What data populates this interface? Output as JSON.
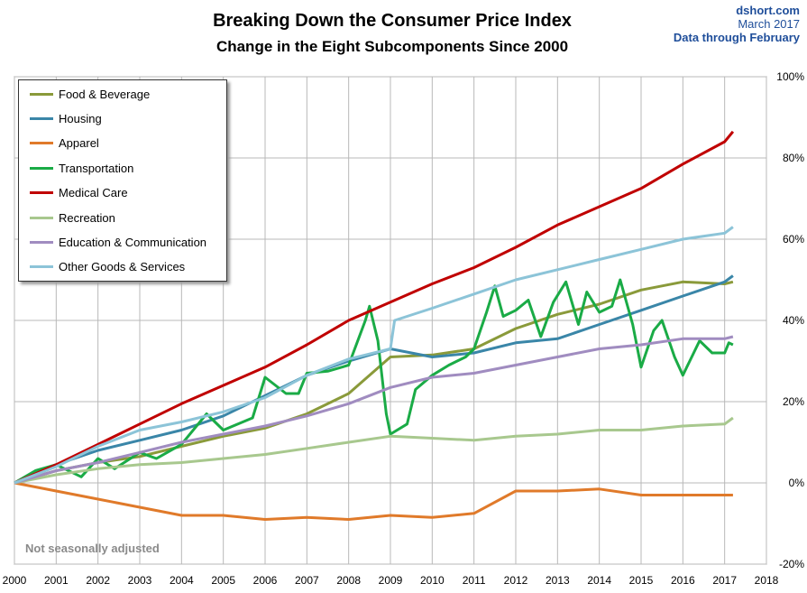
{
  "header": {
    "title": "Breaking Down the Consumer Price Index",
    "subtitle": "Change in the Eight Subcomponents  Since 2000",
    "source": "dshort.com",
    "date": "March 2017",
    "data_through": "Data through February"
  },
  "note": "Not seasonally adjusted",
  "chart_data": {
    "type": "line",
    "title": "Breaking Down the Consumer Price Index",
    "subtitle": "Change in the Eight Subcomponents  Since 2000",
    "x_ticks": [
      "2000",
      "2001",
      "2002",
      "2003",
      "2004",
      "2005",
      "2006",
      "2007",
      "2008",
      "2009",
      "2010",
      "2011",
      "2012",
      "2013",
      "2014",
      "2015",
      "2016",
      "2017",
      "2018"
    ],
    "y_ticks": [
      "100%",
      "80%",
      "60%",
      "40%",
      "20%",
      "0%",
      "-20%"
    ],
    "xlim": [
      2000,
      2018
    ],
    "ylim": [
      -20,
      100
    ],
    "grid": true,
    "legend_position": "top-left",
    "series": [
      {
        "name": "Food & Beverage",
        "color": "#8a9a3a",
        "points": [
          [
            2000,
            0
          ],
          [
            2001,
            3
          ],
          [
            2002,
            5
          ],
          [
            2003,
            6.5
          ],
          [
            2004,
            9
          ],
          [
            2005,
            11.5
          ],
          [
            2006,
            13.5
          ],
          [
            2007,
            17
          ],
          [
            2008,
            22
          ],
          [
            2009,
            31
          ],
          [
            2010,
            31.5
          ],
          [
            2011,
            33
          ],
          [
            2012,
            38
          ],
          [
            2013,
            41.5
          ],
          [
            2014,
            44
          ],
          [
            2015,
            47.5
          ],
          [
            2016,
            49.5
          ],
          [
            2017,
            49
          ],
          [
            2017.2,
            49.5
          ]
        ]
      },
      {
        "name": "Housing",
        "color": "#3a86a8",
        "points": [
          [
            2000,
            0
          ],
          [
            2001,
            4.5
          ],
          [
            2002,
            8
          ],
          [
            2003,
            10.5
          ],
          [
            2004,
            13
          ],
          [
            2005,
            16.5
          ],
          [
            2006,
            21.5
          ],
          [
            2007,
            26.5
          ],
          [
            2008,
            30
          ],
          [
            2009,
            33
          ],
          [
            2010,
            31
          ],
          [
            2011,
            32
          ],
          [
            2012,
            34.5
          ],
          [
            2013,
            35.5
          ],
          [
            2014,
            39
          ],
          [
            2015,
            42.5
          ],
          [
            2016,
            46
          ],
          [
            2017,
            49.5
          ],
          [
            2017.2,
            51
          ]
        ]
      },
      {
        "name": "Apparel",
        "color": "#e07a2a",
        "points": [
          [
            2000,
            0
          ],
          [
            2001,
            -2
          ],
          [
            2002,
            -4
          ],
          [
            2003,
            -6
          ],
          [
            2004,
            -8
          ],
          [
            2005,
            -8
          ],
          [
            2006,
            -9
          ],
          [
            2007,
            -8.5
          ],
          [
            2008,
            -9
          ],
          [
            2009,
            -8
          ],
          [
            2010,
            -8.5
          ],
          [
            2011,
            -7.5
          ],
          [
            2012,
            -2
          ],
          [
            2013,
            -2
          ],
          [
            2014,
            -1.5
          ],
          [
            2015,
            -3
          ],
          [
            2016,
            -3
          ],
          [
            2017,
            -3
          ],
          [
            2017.2,
            -3
          ]
        ]
      },
      {
        "name": "Transportation",
        "color": "#1aab46",
        "points": [
          [
            2000,
            0
          ],
          [
            2000.5,
            3
          ],
          [
            2001,
            4.5
          ],
          [
            2001.6,
            1.5
          ],
          [
            2002,
            6
          ],
          [
            2002.4,
            3.5
          ],
          [
            2003,
            7.5
          ],
          [
            2003.4,
            6
          ],
          [
            2004,
            9.5
          ],
          [
            2004.6,
            17
          ],
          [
            2005,
            13
          ],
          [
            2005.7,
            16
          ],
          [
            2006,
            26
          ],
          [
            2006.5,
            22
          ],
          [
            2006.8,
            22
          ],
          [
            2007,
            27
          ],
          [
            2007.5,
            27.5
          ],
          [
            2008,
            29
          ],
          [
            2008.4,
            40
          ],
          [
            2008.5,
            43.5
          ],
          [
            2008.7,
            35
          ],
          [
            2008.9,
            17
          ],
          [
            2009,
            12
          ],
          [
            2009.4,
            14.5
          ],
          [
            2009.6,
            23
          ],
          [
            2010,
            26.5
          ],
          [
            2010.4,
            29
          ],
          [
            2010.8,
            31
          ],
          [
            2011,
            33
          ],
          [
            2011.3,
            42
          ],
          [
            2011.5,
            48.5
          ],
          [
            2011.7,
            41
          ],
          [
            2012,
            42.5
          ],
          [
            2012.3,
            45
          ],
          [
            2012.6,
            36
          ],
          [
            2012.9,
            44.5
          ],
          [
            2013.2,
            49.5
          ],
          [
            2013.5,
            39
          ],
          [
            2013.7,
            47
          ],
          [
            2014,
            42
          ],
          [
            2014.3,
            43.5
          ],
          [
            2014.5,
            50
          ],
          [
            2014.8,
            39
          ],
          [
            2015,
            28.5
          ],
          [
            2015.3,
            37.5
          ],
          [
            2015.5,
            40
          ],
          [
            2015.8,
            31
          ],
          [
            2016,
            26.5
          ],
          [
            2016.4,
            35
          ],
          [
            2016.7,
            32
          ],
          [
            2017,
            32
          ],
          [
            2017.1,
            34.5
          ],
          [
            2017.2,
            34
          ]
        ]
      },
      {
        "name": "Medical Care",
        "color": "#c00000",
        "points": [
          [
            2000,
            0
          ],
          [
            2001,
            4.5
          ],
          [
            2002,
            9.5
          ],
          [
            2003,
            14.5
          ],
          [
            2004,
            19.5
          ],
          [
            2005,
            24
          ],
          [
            2006,
            28.5
          ],
          [
            2007,
            34
          ],
          [
            2008,
            40
          ],
          [
            2009,
            44.5
          ],
          [
            2010,
            49
          ],
          [
            2011,
            53
          ],
          [
            2012,
            58
          ],
          [
            2013,
            63.5
          ],
          [
            2014,
            68
          ],
          [
            2015,
            72.5
          ],
          [
            2016,
            78.5
          ],
          [
            2017,
            84
          ],
          [
            2017.2,
            86.5
          ]
        ]
      },
      {
        "name": "Recreation",
        "color": "#a8c88e",
        "points": [
          [
            2000,
            0
          ],
          [
            2001,
            2
          ],
          [
            2002,
            3.5
          ],
          [
            2003,
            4.5
          ],
          [
            2004,
            5
          ],
          [
            2005,
            6
          ],
          [
            2006,
            7
          ],
          [
            2007,
            8.5
          ],
          [
            2008,
            10
          ],
          [
            2009,
            11.5
          ],
          [
            2010,
            11
          ],
          [
            2011,
            10.5
          ],
          [
            2012,
            11.5
          ],
          [
            2013,
            12
          ],
          [
            2014,
            13
          ],
          [
            2015,
            13
          ],
          [
            2016,
            14
          ],
          [
            2017,
            14.5
          ],
          [
            2017.2,
            16
          ]
        ]
      },
      {
        "name": "Education & Communication",
        "color": "#a08cc0",
        "points": [
          [
            2000,
            0
          ],
          [
            2001,
            3
          ],
          [
            2002,
            5
          ],
          [
            2003,
            7.5
          ],
          [
            2004,
            10
          ],
          [
            2005,
            12
          ],
          [
            2006,
            14
          ],
          [
            2007,
            16.5
          ],
          [
            2008,
            19.5
          ],
          [
            2009,
            23.5
          ],
          [
            2010,
            26
          ],
          [
            2011,
            27
          ],
          [
            2012,
            29
          ],
          [
            2013,
            31
          ],
          [
            2014,
            33
          ],
          [
            2015,
            34
          ],
          [
            2016,
            35.5
          ],
          [
            2017,
            35.5
          ],
          [
            2017.2,
            36
          ]
        ]
      },
      {
        "name": "Other Goods & Services",
        "color": "#8cc4d8",
        "points": [
          [
            2000,
            0
          ],
          [
            2001,
            4
          ],
          [
            2002,
            9
          ],
          [
            2003,
            13
          ],
          [
            2004,
            15
          ],
          [
            2005,
            17.5
          ],
          [
            2006,
            21
          ],
          [
            2007,
            26.5
          ],
          [
            2008,
            30.5
          ],
          [
            2009,
            33
          ],
          [
            2009.1,
            40
          ],
          [
            2010,
            43
          ],
          [
            2011,
            46.5
          ],
          [
            2012,
            50
          ],
          [
            2013,
            52.5
          ],
          [
            2014,
            55
          ],
          [
            2015,
            57.5
          ],
          [
            2016,
            60
          ],
          [
            2017,
            61.5
          ],
          [
            2017.2,
            63
          ]
        ]
      }
    ]
  }
}
